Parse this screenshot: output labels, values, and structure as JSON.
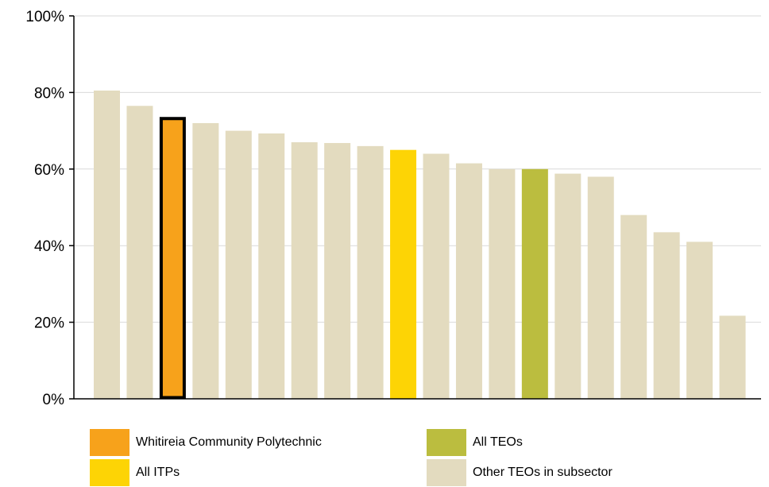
{
  "chart_data": {
    "type": "bar",
    "ylim": [
      0,
      100
    ],
    "yticks": [
      0,
      20,
      40,
      60,
      80,
      100
    ],
    "ytick_labels": [
      "0%",
      "20%",
      "40%",
      "60%",
      "80%",
      "100%"
    ],
    "values": [
      80.5,
      76.5,
      73.5,
      72,
      70,
      69.3,
      67,
      66.8,
      66,
      65,
      64,
      61.5,
      60,
      60,
      58.8,
      58,
      48,
      43.5,
      41,
      21.7
    ],
    "bar_groups": [
      "other",
      "other",
      "whitireia",
      "other",
      "other",
      "other",
      "other",
      "other",
      "other",
      "itp",
      "other",
      "other",
      "other",
      "teo",
      "other",
      "other",
      "other",
      "other",
      "other",
      "other"
    ],
    "grid": "horizontal",
    "legend_position": "bottom",
    "legend": [
      {
        "key": "whitireia",
        "label": "Whitireia Community Polytechnic",
        "color": "#F7A21B"
      },
      {
        "key": "teo",
        "label": "All TEOs",
        "color": "#BBBD3F"
      },
      {
        "key": "itp",
        "label": "All ITPs",
        "color": "#FDD405"
      },
      {
        "key": "other",
        "label": "Other TEOs in subsector",
        "color": "#E3DBBF"
      }
    ]
  }
}
